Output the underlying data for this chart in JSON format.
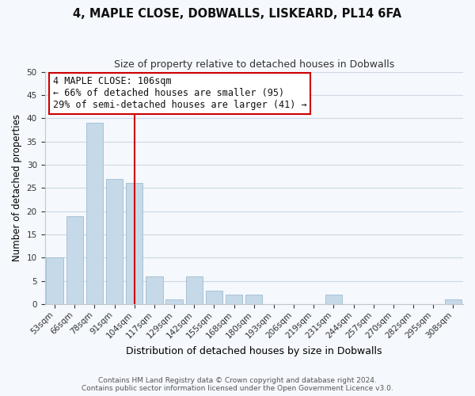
{
  "title1": "4, MAPLE CLOSE, DOBWALLS, LISKEARD, PL14 6FA",
  "title2": "Size of property relative to detached houses in Dobwalls",
  "xlabel": "Distribution of detached houses by size in Dobwalls",
  "ylabel": "Number of detached properties",
  "bin_labels": [
    "53sqm",
    "66sqm",
    "78sqm",
    "91sqm",
    "104sqm",
    "117sqm",
    "129sqm",
    "142sqm",
    "155sqm",
    "168sqm",
    "180sqm",
    "193sqm",
    "206sqm",
    "219sqm",
    "231sqm",
    "244sqm",
    "257sqm",
    "270sqm",
    "282sqm",
    "295sqm",
    "308sqm"
  ],
  "bar_values": [
    10,
    19,
    39,
    27,
    26,
    6,
    1,
    6,
    3,
    2,
    2,
    0,
    0,
    0,
    2,
    0,
    0,
    0,
    0,
    0,
    1
  ],
  "bar_color": "#c5d9e8",
  "bar_edge_color": "#a0bcd0",
  "vline_x": 4.5,
  "vline_color": "#cc0000",
  "ylim": [
    0,
    50
  ],
  "yticks": [
    0,
    5,
    10,
    15,
    20,
    25,
    30,
    35,
    40,
    45,
    50
  ],
  "annotation_title": "4 MAPLE CLOSE: 106sqm",
  "annotation_line1": "← 66% of detached houses are smaller (95)",
  "annotation_line2": "29% of semi-detached houses are larger (41) →",
  "footer1": "Contains HM Land Registry data © Crown copyright and database right 2024.",
  "footer2": "Contains public sector information licensed under the Open Government Licence v3.0.",
  "bg_color": "#f5f8fc",
  "grid_color": "#cdd8e5",
  "title1_fontsize": 10.5,
  "title2_fontsize": 9,
  "ylabel_fontsize": 8.5,
  "xlabel_fontsize": 9,
  "tick_fontsize": 7.5,
  "ann_fontsize": 8.5,
  "footer_fontsize": 6.5
}
